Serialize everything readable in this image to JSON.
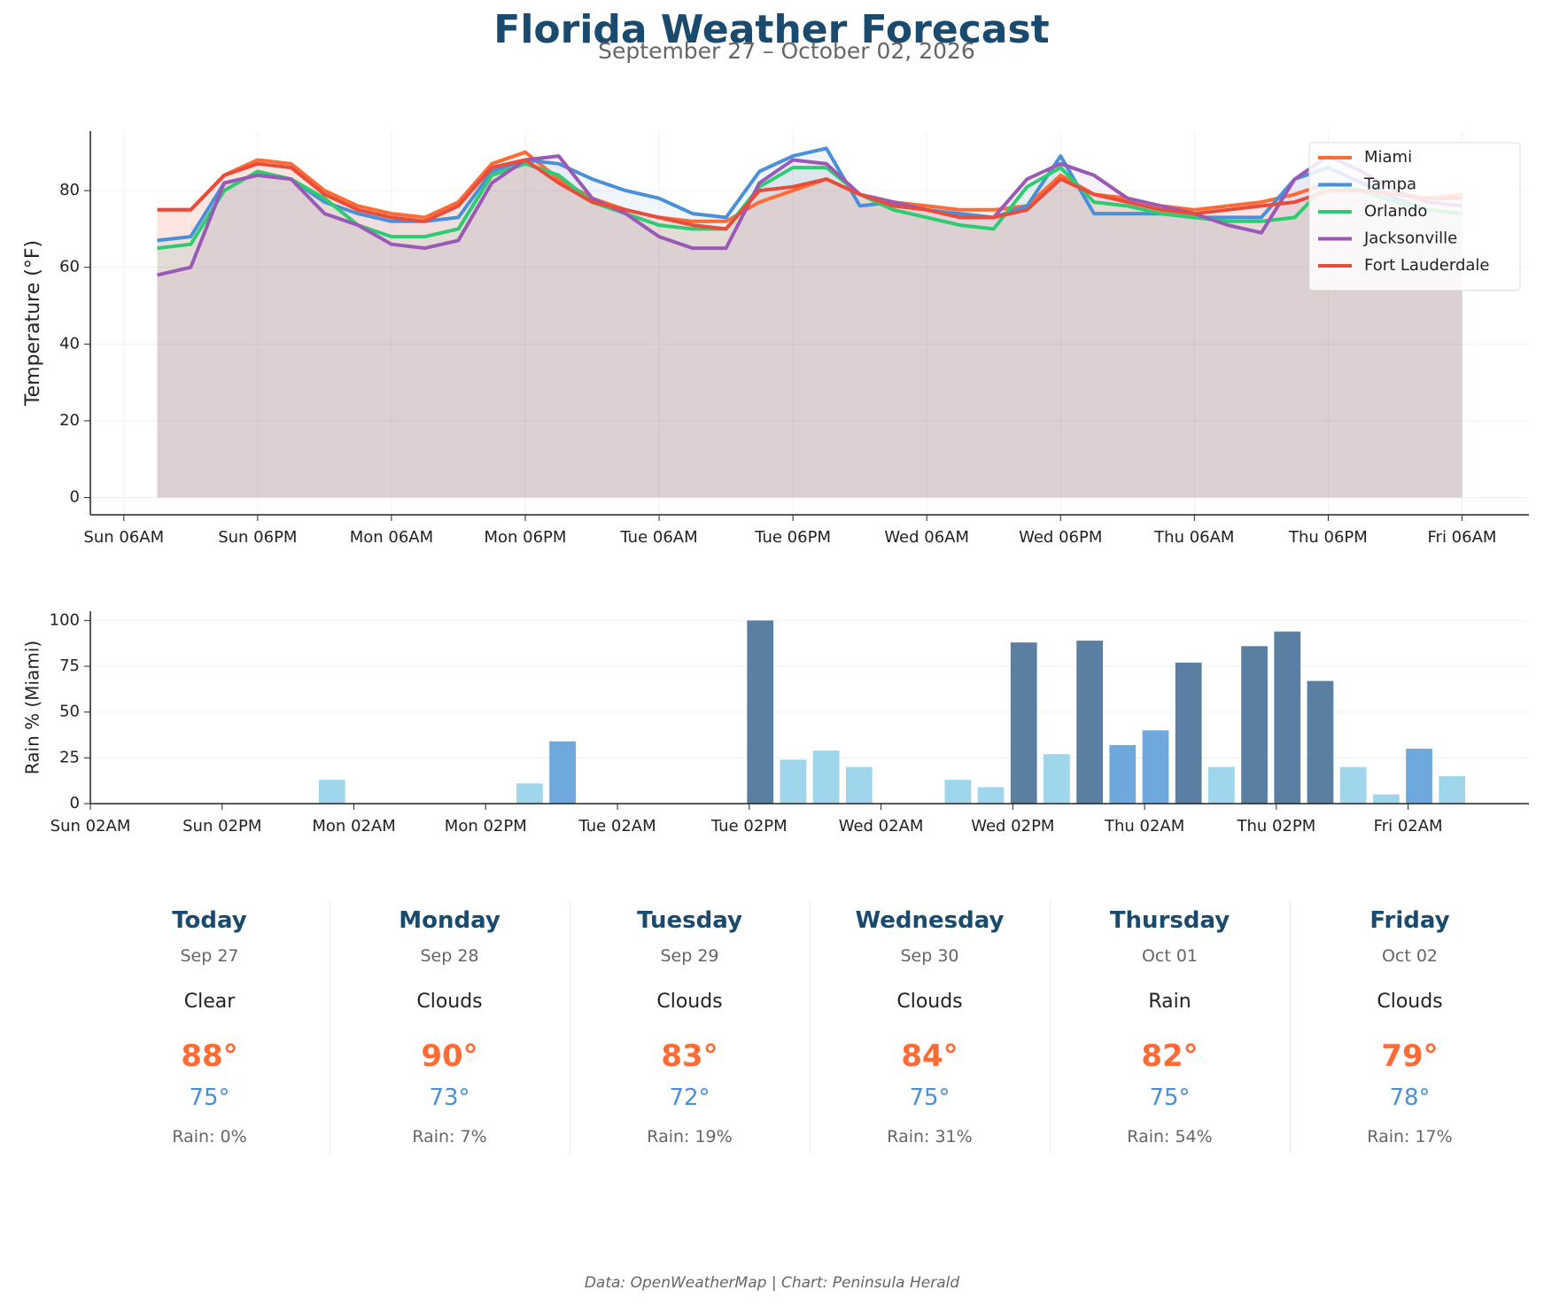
{
  "header": {
    "title": "Florida Weather Forecast",
    "subtitle": "September 27 – October 02, 2026"
  },
  "chart_data": [
    {
      "type": "line",
      "ylabel": "Temperature (°F)",
      "x": [
        "Sun 09AM",
        "Sun 12PM",
        "Sun 03PM",
        "Sun 06PM",
        "Sun 09PM",
        "Mon 12AM",
        "Mon 03AM",
        "Mon 06AM",
        "Mon 09AM",
        "Mon 12PM",
        "Mon 03PM",
        "Mon 06PM",
        "Mon 09PM",
        "Tue 12AM",
        "Tue 03AM",
        "Tue 06AM",
        "Tue 09AM",
        "Tue 12PM",
        "Tue 03PM",
        "Tue 06PM",
        "Tue 09PM",
        "Wed 12AM",
        "Wed 03AM",
        "Wed 06AM",
        "Wed 09AM",
        "Wed 12PM",
        "Wed 03PM",
        "Wed 06PM",
        "Wed 09PM",
        "Thu 12AM",
        "Thu 03AM",
        "Thu 06AM",
        "Thu 09AM",
        "Thu 12PM",
        "Thu 03PM",
        "Thu 06PM",
        "Thu 09PM",
        "Fri 12AM",
        "Fri 03AM",
        "Fri 06AM"
      ],
      "series": [
        {
          "name": "Miami",
          "color": "#ff6b35",
          "values": [
            75,
            75,
            84,
            88,
            87,
            80,
            76,
            74,
            73,
            77,
            87,
            90,
            83,
            78,
            75,
            73,
            72,
            72,
            77,
            80,
            83,
            79,
            77,
            76,
            75,
            75,
            76,
            84,
            79,
            78,
            76,
            75,
            76,
            77,
            79,
            82,
            80,
            79,
            78,
            79
          ]
        },
        {
          "name": "Tampa",
          "color": "#4a90d9",
          "values": [
            67,
            68,
            82,
            84,
            83,
            77,
            74,
            72,
            72,
            73,
            85,
            88,
            87,
            83,
            80,
            78,
            74,
            73,
            85,
            89,
            91,
            76,
            77,
            75,
            74,
            73,
            76,
            89,
            74,
            74,
            74,
            73,
            73,
            73,
            83,
            86,
            82,
            78,
            75,
            74
          ]
        },
        {
          "name": "Orlando",
          "color": "#2ecc71",
          "values": [
            65,
            66,
            80,
            85,
            83,
            78,
            71,
            68,
            68,
            70,
            84,
            87,
            84,
            77,
            74,
            71,
            70,
            70,
            81,
            86,
            86,
            79,
            75,
            73,
            71,
            70,
            81,
            86,
            77,
            76,
            74,
            73,
            72,
            72,
            73,
            82,
            80,
            77,
            75,
            74
          ]
        },
        {
          "name": "Jacksonville",
          "color": "#9b59b6",
          "values": [
            58,
            60,
            82,
            84,
            83,
            74,
            71,
            66,
            65,
            67,
            82,
            88,
            89,
            78,
            74,
            68,
            65,
            65,
            82,
            88,
            87,
            79,
            77,
            75,
            73,
            73,
            83,
            87,
            84,
            78,
            76,
            74,
            71,
            69,
            83,
            89,
            85,
            80,
            77,
            76
          ]
        },
        {
          "name": "Fort Lauderdale",
          "color": "#e74c3c",
          "values": [
            75,
            75,
            84,
            87,
            86,
            79,
            75,
            73,
            72,
            76,
            86,
            88,
            82,
            77,
            75,
            73,
            71,
            70,
            80,
            81,
            83,
            79,
            76,
            75,
            73,
            73,
            75,
            83,
            79,
            77,
            75,
            74,
            75,
            76,
            77,
            80,
            80,
            79,
            78,
            78
          ]
        }
      ],
      "xlim": [
        "Sun 03AM",
        "Fri 12PM"
      ],
      "xticks": [
        "Sun 06AM",
        "Sun 06PM",
        "Mon 06AM",
        "Mon 06PM",
        "Tue 06AM",
        "Tue 06PM",
        "Wed 06AM",
        "Wed 06PM",
        "Thu 06AM",
        "Thu 06PM",
        "Fri 06AM"
      ],
      "ylim": [
        -4.5,
        95.5
      ],
      "yticks": [
        0,
        20,
        40,
        60,
        80
      ],
      "grid": "both",
      "legend": "upper right"
    },
    {
      "type": "bar",
      "ylabel": "Rain % (Miami)",
      "x": [
        "Sun 09AM",
        "Sun 12PM",
        "Sun 03PM",
        "Sun 06PM",
        "Sun 09PM",
        "Mon 12AM",
        "Mon 03AM",
        "Mon 06AM",
        "Mon 09AM",
        "Mon 12PM",
        "Mon 03PM",
        "Mon 06PM",
        "Mon 09PM",
        "Tue 12AM",
        "Tue 03AM",
        "Tue 06AM",
        "Tue 09AM",
        "Tue 12PM",
        "Tue 03PM",
        "Tue 06PM",
        "Tue 09PM",
        "Wed 12AM",
        "Wed 03AM",
        "Wed 06AM",
        "Wed 09AM",
        "Wed 12PM",
        "Wed 03PM",
        "Wed 06PM",
        "Wed 09PM",
        "Thu 12AM",
        "Thu 03AM",
        "Thu 06AM",
        "Thu 09AM",
        "Thu 12PM",
        "Thu 03PM",
        "Thu 06PM",
        "Thu 09PM",
        "Fri 12AM",
        "Fri 03AM",
        "Fri 06AM"
      ],
      "values": [
        0,
        0,
        0,
        0,
        0,
        13,
        0,
        0,
        0,
        0,
        0,
        11,
        34,
        0,
        0,
        0,
        0,
        0,
        100,
        24,
        29,
        20,
        0,
        0,
        13,
        9,
        88,
        27,
        89,
        32,
        40,
        77,
        20,
        86,
        94,
        67,
        20,
        5,
        30,
        15
      ],
      "colors": [
        "#9fd6ec",
        "#9fd6ec",
        "#9fd6ec",
        "#9fd6ec",
        "#9fd6ec",
        "#9fd6ec",
        "#9fd6ec",
        "#9fd6ec",
        "#9fd6ec",
        "#9fd6ec",
        "#9fd6ec",
        "#9fd6ec",
        "#6fa8dc",
        "#9fd6ec",
        "#9fd6ec",
        "#9fd6ec",
        "#9fd6ec",
        "#9fd6ec",
        "#5a7fa3",
        "#9fd6ec",
        "#9fd6ec",
        "#9fd6ec",
        "#9fd6ec",
        "#9fd6ec",
        "#9fd6ec",
        "#9fd6ec",
        "#5a7fa3",
        "#9fd6ec",
        "#5a7fa3",
        "#6fa8dc",
        "#6fa8dc",
        "#5a7fa3",
        "#9fd6ec",
        "#5a7fa3",
        "#5a7fa3",
        "#5a7fa3",
        "#9fd6ec",
        "#9fd6ec",
        "#6fa8dc",
        "#9fd6ec"
      ],
      "xlim": [
        "Sun 02AM",
        "Fri 01PM"
      ],
      "xticks": [
        "Sun 02AM",
        "Sun 02PM",
        "Mon 02AM",
        "Mon 02PM",
        "Tue 02AM",
        "Tue 02PM",
        "Wed 02AM",
        "Wed 02PM",
        "Thu 02AM",
        "Thu 02PM",
        "Fri 02AM"
      ],
      "ylim": [
        0,
        105
      ],
      "yticks": [
        0,
        25,
        50,
        75,
        100
      ],
      "grid": "y"
    }
  ],
  "forecast": [
    {
      "day": "Today",
      "date": "Sep 27",
      "condition": "Clear",
      "high": "88°",
      "low": "75°",
      "rain": "Rain: 0%"
    },
    {
      "day": "Monday",
      "date": "Sep 28",
      "condition": "Clouds",
      "high": "90°",
      "low": "73°",
      "rain": "Rain: 7%"
    },
    {
      "day": "Tuesday",
      "date": "Sep 29",
      "condition": "Clouds",
      "high": "83°",
      "low": "72°",
      "rain": "Rain: 19%"
    },
    {
      "day": "Wednesday",
      "date": "Sep 30",
      "condition": "Clouds",
      "high": "84°",
      "low": "75°",
      "rain": "Rain: 31%"
    },
    {
      "day": "Thursday",
      "date": "Oct 01",
      "condition": "Rain",
      "high": "82°",
      "low": "75°",
      "rain": "Rain: 54%"
    },
    {
      "day": "Friday",
      "date": "Oct 02",
      "condition": "Clouds",
      "high": "79°",
      "low": "78°",
      "rain": "Rain: 17%"
    }
  ],
  "footer": "Data: OpenWeatherMap | Chart: Peninsula Herald"
}
